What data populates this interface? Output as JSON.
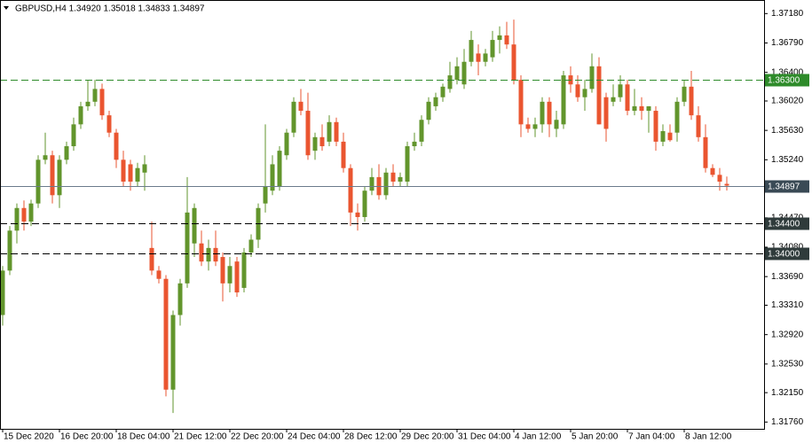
{
  "chart_data": {
    "type": "candlestick",
    "title": "GBPUSD,H4  1.34920 1.35018 1.34833 1.34897",
    "up_color": "#62952c",
    "down_color": "#ea5530",
    "ylim": [
      1.3167,
      1.3736
    ],
    "yticks": [
      {
        "value": 1.3718,
        "label": "1.37180"
      },
      {
        "value": 1.3679,
        "label": "1.36790"
      },
      {
        "value": 1.364,
        "label": "1.36400"
      },
      {
        "value": 1.3602,
        "label": "1.36020"
      },
      {
        "value": 1.3563,
        "label": "1.35630"
      },
      {
        "value": 1.3524,
        "label": "1.35240"
      },
      {
        "value": 1.3485,
        "label": "1.34850"
      },
      {
        "value": 1.3447,
        "label": "1.34470"
      },
      {
        "value": 1.3408,
        "label": "1.34080"
      },
      {
        "value": 1.3369,
        "label": "1.33690"
      },
      {
        "value": 1.3331,
        "label": "1.33310"
      },
      {
        "value": 1.3292,
        "label": "1.32920"
      },
      {
        "value": 1.3253,
        "label": "1.32530"
      },
      {
        "value": 1.3215,
        "label": "1.32150"
      },
      {
        "value": 1.3176,
        "label": "1.31760"
      }
    ],
    "grid": false,
    "levels": [
      {
        "value": 1.363,
        "label": "1.36300",
        "color": "#2e8b2a",
        "box_color": "#2e8b2a",
        "style": "dashed"
      },
      {
        "value": 1.34897,
        "label": "1.34897",
        "color": "#6b7b8b",
        "box_color": "#3a4a55",
        "style": "solid"
      },
      {
        "value": 1.344,
        "label": "1.34400",
        "color": "#000000",
        "box_color": "#2f3b3b",
        "style": "dashed"
      },
      {
        "value": 1.34,
        "label": "1.34000",
        "color": "#000000",
        "box_color": "#2f3b3b",
        "style": "dashed"
      }
    ],
    "categories": [
      "15 Dec 2020",
      null,
      null,
      null,
      null,
      null,
      null,
      null,
      "16 Dec 20:00",
      null,
      null,
      null,
      null,
      null,
      null,
      null,
      "18 Dec 04:00",
      null,
      null,
      null,
      null,
      null,
      null,
      null,
      "21 Dec 12:00",
      null,
      null,
      null,
      null,
      null,
      null,
      null,
      "22 Dec 20:00",
      null,
      null,
      null,
      null,
      null,
      null,
      null,
      "24 Dec 04:00",
      null,
      null,
      null,
      null,
      null,
      null,
      null,
      "28 Dec 12:00",
      null,
      null,
      null,
      null,
      null,
      null,
      null,
      "29 Dec 20:00",
      null,
      null,
      null,
      null,
      null,
      null,
      null,
      "31 Dec 04:00",
      null,
      null,
      null,
      null,
      null,
      null,
      null,
      "4 Jan 12:00",
      null,
      null,
      null,
      null,
      null,
      null,
      null,
      "5 Jan 20:00",
      null,
      null,
      null,
      null,
      null,
      null,
      null,
      "7 Jan 04:00",
      null,
      null,
      null,
      null,
      null,
      null,
      null,
      "8 Jan 12:00",
      null,
      null,
      null,
      null,
      null,
      null
    ],
    "open": [
      1.3318,
      1.3377,
      1.343,
      1.346,
      1.3442,
      1.3466,
      1.3524,
      1.353,
      1.3477,
      1.3524,
      1.3542,
      1.3571,
      1.3595,
      1.3601,
      1.3618,
      1.3583,
      1.356,
      1.3524,
      1.3518,
      1.3495,
      1.3507,
      1.3407,
      1.3377,
      1.3366,
      1.3219,
      1.3318,
      1.336,
      1.3413,
      1.3413,
      1.3389,
      1.3407,
      1.3395,
      1.336,
      1.3389,
      1.3354,
      1.3401,
      1.3418,
      1.3466,
      1.3483,
      1.3489,
      1.353,
      1.356,
      1.3601,
      1.3589,
      1.3536,
      1.3554,
      1.3548,
      1.3574,
      1.3548,
      1.3513,
      1.3454,
      1.3448,
      1.3483,
      1.3501,
      1.3477,
      1.3507,
      1.3495,
      1.3495,
      1.3542,
      1.3548,
      1.3577,
      1.3595,
      1.3607,
      1.3618,
      1.363,
      1.3624,
      1.3654,
      1.3665,
      1.3654,
      1.366,
      1.3683,
      1.3689,
      1.3677,
      1.363,
      1.3571,
      1.3565,
      1.3571,
      1.3601,
      1.3565,
      1.3571,
      1.3636,
      1.3624,
      1.3607,
      1.3618,
      1.3648,
      1.3607,
      1.3601,
      1.3607,
      1.3624,
      1.3589,
      1.3595,
      1.3589,
      1.3589,
      1.3548,
      1.356,
      1.356,
      1.3601,
      1.3621,
      1.3583,
      1.3554,
      1.3513,
      1.3504,
      1.3492
    ],
    "high": [
      1.3383,
      1.3436,
      1.3466,
      1.347,
      1.3471,
      1.353,
      1.356,
      1.3536,
      1.353,
      1.3548,
      1.358,
      1.3601,
      1.363,
      1.363,
      1.3625,
      1.3589,
      1.3565,
      1.3536,
      1.3524,
      1.352,
      1.353,
      1.3442,
      1.3383,
      1.3371,
      1.3324,
      1.3366,
      1.3501,
      1.3466,
      1.343,
      1.3418,
      1.343,
      1.3401,
      1.3395,
      1.3395,
      1.3407,
      1.3425,
      1.3466,
      1.3571,
      1.353,
      1.3542,
      1.3565,
      1.3607,
      1.3618,
      1.3613,
      1.356,
      1.3571,
      1.3583,
      1.358,
      1.356,
      1.3518,
      1.3466,
      1.3489,
      1.3513,
      1.3518,
      1.3513,
      1.3518,
      1.3507,
      1.3548,
      1.356,
      1.3583,
      1.3607,
      1.3613,
      1.3625,
      1.3654,
      1.366,
      1.3671,
      1.3695,
      1.3677,
      1.3671,
      1.3695,
      1.3701,
      1.3707,
      1.371,
      1.3636,
      1.358,
      1.358,
      1.3607,
      1.3607,
      1.3589,
      1.3642,
      1.3648,
      1.3636,
      1.363,
      1.3665,
      1.366,
      1.3613,
      1.3624,
      1.3636,
      1.363,
      1.3618,
      1.3607,
      1.3595,
      1.3595,
      1.3571,
      1.3571,
      1.3607,
      1.363,
      1.3642,
      1.3595,
      1.3571,
      1.3518,
      1.3513,
      1.35018
    ],
    "low": [
      1.3304,
      1.3371,
      1.3413,
      1.343,
      1.3436,
      1.346,
      1.3518,
      1.3466,
      1.346,
      1.3518,
      1.3536,
      1.3565,
      1.3589,
      1.3595,
      1.3577,
      1.3554,
      1.3513,
      1.3489,
      1.3483,
      1.3489,
      1.3483,
      1.3371,
      1.336,
      1.321,
      1.3188,
      1.3304,
      1.3354,
      1.3395,
      1.3383,
      1.3377,
      1.3383,
      1.3336,
      1.3348,
      1.3342,
      1.3348,
      1.3395,
      1.3407,
      1.3454,
      1.3477,
      1.3483,
      1.3524,
      1.3554,
      1.3583,
      1.3524,
      1.3524,
      1.3536,
      1.3542,
      1.3542,
      1.3507,
      1.3436,
      1.343,
      1.3442,
      1.3477,
      1.3471,
      1.3471,
      1.3489,
      1.3489,
      1.3489,
      1.3536,
      1.3542,
      1.3571,
      1.3589,
      1.3601,
      1.3613,
      1.3624,
      1.3618,
      1.3648,
      1.3636,
      1.3648,
      1.3654,
      1.3665,
      1.3671,
      1.3624,
      1.3554,
      1.356,
      1.3554,
      1.356,
      1.3554,
      1.3554,
      1.3565,
      1.3613,
      1.3601,
      1.3589,
      1.3613,
      1.3571,
      1.3548,
      1.3595,
      1.3601,
      1.3583,
      1.3583,
      1.3577,
      1.356,
      1.3536,
      1.3542,
      1.3548,
      1.3548,
      1.3595,
      1.3577,
      1.3548,
      1.3507,
      1.3501,
      1.3483,
      1.34833
    ],
    "close": [
      1.3377,
      1.343,
      1.346,
      1.3442,
      1.3466,
      1.3524,
      1.353,
      1.3477,
      1.3524,
      1.3542,
      1.3571,
      1.3595,
      1.3601,
      1.3618,
      1.3583,
      1.356,
      1.3524,
      1.3495,
      1.3495,
      1.3513,
      1.3518,
      1.3377,
      1.3366,
      1.3219,
      1.3318,
      1.336,
      1.3454,
      1.346,
      1.3389,
      1.3407,
      1.3389,
      1.336,
      1.3383,
      1.3348,
      1.3401,
      1.3418,
      1.346,
      1.3489,
      1.3518,
      1.3536,
      1.356,
      1.3601,
      1.3589,
      1.353,
      1.3554,
      1.3542,
      1.3574,
      1.3548,
      1.3513,
      1.3454,
      1.3448,
      1.3483,
      1.3501,
      1.3477,
      1.3507,
      1.3495,
      1.3501,
      1.3542,
      1.3548,
      1.3577,
      1.3601,
      1.3607,
      1.3621,
      1.3636,
      1.3648,
      1.3654,
      1.3683,
      1.3654,
      1.3665,
      1.3683,
      1.3689,
      1.3677,
      1.363,
      1.3571,
      1.3565,
      1.3571,
      1.3601,
      1.3571,
      1.3577,
      1.3636,
      1.3624,
      1.3607,
      1.3618,
      1.3648,
      1.3571,
      1.3565,
      1.3607,
      1.3624,
      1.3589,
      1.3595,
      1.3589,
      1.3595,
      1.3548,
      1.3562,
      1.355,
      1.3601,
      1.3621,
      1.3583,
      1.3554,
      1.3513,
      1.3504,
      1.3495,
      1.34897
    ]
  }
}
